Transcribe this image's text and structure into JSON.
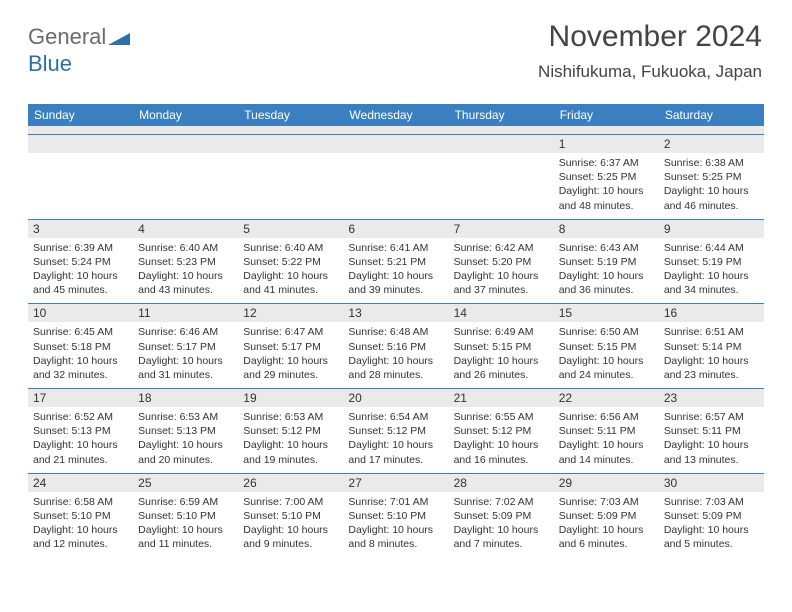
{
  "brand": {
    "part1": "General",
    "part2": "Blue"
  },
  "title": "November 2024",
  "location": "Nishifukuma, Fukuoka, Japan",
  "colors": {
    "header_bg": "#3a7fc0",
    "header_text": "#ffffff",
    "daynum_bg": "#eaeaea",
    "text": "#333333",
    "title_text": "#444444",
    "border": "#3a7fc0"
  },
  "dow": [
    "Sunday",
    "Monday",
    "Tuesday",
    "Wednesday",
    "Thursday",
    "Friday",
    "Saturday"
  ],
  "weeks": [
    [
      {
        "n": "",
        "sr": "",
        "ss": "",
        "dl": ""
      },
      {
        "n": "",
        "sr": "",
        "ss": "",
        "dl": ""
      },
      {
        "n": "",
        "sr": "",
        "ss": "",
        "dl": ""
      },
      {
        "n": "",
        "sr": "",
        "ss": "",
        "dl": ""
      },
      {
        "n": "",
        "sr": "",
        "ss": "",
        "dl": ""
      },
      {
        "n": "1",
        "sr": "Sunrise: 6:37 AM",
        "ss": "Sunset: 5:25 PM",
        "dl": "Daylight: 10 hours and 48 minutes."
      },
      {
        "n": "2",
        "sr": "Sunrise: 6:38 AM",
        "ss": "Sunset: 5:25 PM",
        "dl": "Daylight: 10 hours and 46 minutes."
      }
    ],
    [
      {
        "n": "3",
        "sr": "Sunrise: 6:39 AM",
        "ss": "Sunset: 5:24 PM",
        "dl": "Daylight: 10 hours and 45 minutes."
      },
      {
        "n": "4",
        "sr": "Sunrise: 6:40 AM",
        "ss": "Sunset: 5:23 PM",
        "dl": "Daylight: 10 hours and 43 minutes."
      },
      {
        "n": "5",
        "sr": "Sunrise: 6:40 AM",
        "ss": "Sunset: 5:22 PM",
        "dl": "Daylight: 10 hours and 41 minutes."
      },
      {
        "n": "6",
        "sr": "Sunrise: 6:41 AM",
        "ss": "Sunset: 5:21 PM",
        "dl": "Daylight: 10 hours and 39 minutes."
      },
      {
        "n": "7",
        "sr": "Sunrise: 6:42 AM",
        "ss": "Sunset: 5:20 PM",
        "dl": "Daylight: 10 hours and 37 minutes."
      },
      {
        "n": "8",
        "sr": "Sunrise: 6:43 AM",
        "ss": "Sunset: 5:19 PM",
        "dl": "Daylight: 10 hours and 36 minutes."
      },
      {
        "n": "9",
        "sr": "Sunrise: 6:44 AM",
        "ss": "Sunset: 5:19 PM",
        "dl": "Daylight: 10 hours and 34 minutes."
      }
    ],
    [
      {
        "n": "10",
        "sr": "Sunrise: 6:45 AM",
        "ss": "Sunset: 5:18 PM",
        "dl": "Daylight: 10 hours and 32 minutes."
      },
      {
        "n": "11",
        "sr": "Sunrise: 6:46 AM",
        "ss": "Sunset: 5:17 PM",
        "dl": "Daylight: 10 hours and 31 minutes."
      },
      {
        "n": "12",
        "sr": "Sunrise: 6:47 AM",
        "ss": "Sunset: 5:17 PM",
        "dl": "Daylight: 10 hours and 29 minutes."
      },
      {
        "n": "13",
        "sr": "Sunrise: 6:48 AM",
        "ss": "Sunset: 5:16 PM",
        "dl": "Daylight: 10 hours and 28 minutes."
      },
      {
        "n": "14",
        "sr": "Sunrise: 6:49 AM",
        "ss": "Sunset: 5:15 PM",
        "dl": "Daylight: 10 hours and 26 minutes."
      },
      {
        "n": "15",
        "sr": "Sunrise: 6:50 AM",
        "ss": "Sunset: 5:15 PM",
        "dl": "Daylight: 10 hours and 24 minutes."
      },
      {
        "n": "16",
        "sr": "Sunrise: 6:51 AM",
        "ss": "Sunset: 5:14 PM",
        "dl": "Daylight: 10 hours and 23 minutes."
      }
    ],
    [
      {
        "n": "17",
        "sr": "Sunrise: 6:52 AM",
        "ss": "Sunset: 5:13 PM",
        "dl": "Daylight: 10 hours and 21 minutes."
      },
      {
        "n": "18",
        "sr": "Sunrise: 6:53 AM",
        "ss": "Sunset: 5:13 PM",
        "dl": "Daylight: 10 hours and 20 minutes."
      },
      {
        "n": "19",
        "sr": "Sunrise: 6:53 AM",
        "ss": "Sunset: 5:12 PM",
        "dl": "Daylight: 10 hours and 19 minutes."
      },
      {
        "n": "20",
        "sr": "Sunrise: 6:54 AM",
        "ss": "Sunset: 5:12 PM",
        "dl": "Daylight: 10 hours and 17 minutes."
      },
      {
        "n": "21",
        "sr": "Sunrise: 6:55 AM",
        "ss": "Sunset: 5:12 PM",
        "dl": "Daylight: 10 hours and 16 minutes."
      },
      {
        "n": "22",
        "sr": "Sunrise: 6:56 AM",
        "ss": "Sunset: 5:11 PM",
        "dl": "Daylight: 10 hours and 14 minutes."
      },
      {
        "n": "23",
        "sr": "Sunrise: 6:57 AM",
        "ss": "Sunset: 5:11 PM",
        "dl": "Daylight: 10 hours and 13 minutes."
      }
    ],
    [
      {
        "n": "24",
        "sr": "Sunrise: 6:58 AM",
        "ss": "Sunset: 5:10 PM",
        "dl": "Daylight: 10 hours and 12 minutes."
      },
      {
        "n": "25",
        "sr": "Sunrise: 6:59 AM",
        "ss": "Sunset: 5:10 PM",
        "dl": "Daylight: 10 hours and 11 minutes."
      },
      {
        "n": "26",
        "sr": "Sunrise: 7:00 AM",
        "ss": "Sunset: 5:10 PM",
        "dl": "Daylight: 10 hours and 9 minutes."
      },
      {
        "n": "27",
        "sr": "Sunrise: 7:01 AM",
        "ss": "Sunset: 5:10 PM",
        "dl": "Daylight: 10 hours and 8 minutes."
      },
      {
        "n": "28",
        "sr": "Sunrise: 7:02 AM",
        "ss": "Sunset: 5:09 PM",
        "dl": "Daylight: 10 hours and 7 minutes."
      },
      {
        "n": "29",
        "sr": "Sunrise: 7:03 AM",
        "ss": "Sunset: 5:09 PM",
        "dl": "Daylight: 10 hours and 6 minutes."
      },
      {
        "n": "30",
        "sr": "Sunrise: 7:03 AM",
        "ss": "Sunset: 5:09 PM",
        "dl": "Daylight: 10 hours and 5 minutes."
      }
    ]
  ]
}
